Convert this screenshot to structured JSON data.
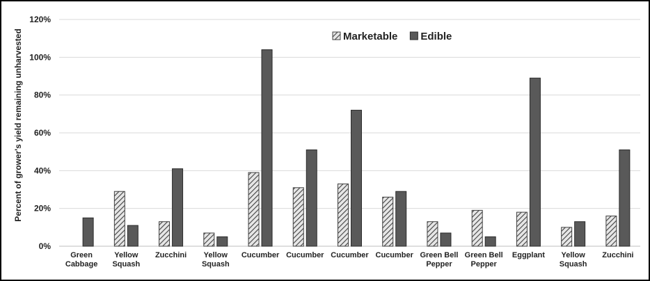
{
  "chart_data": {
    "type": "bar",
    "y_label": "Percent of grower's yield remaining unharvested",
    "categories": [
      "Green\nCabbage",
      "Yellow\nSquash",
      "Zucchini",
      "Yellow\nSquash",
      "Cucumber",
      "Cucumber",
      "Cucumber",
      "Cucumber",
      "Green Bell\nPepper",
      "Green Bell\nPepper",
      "Eggplant",
      "Yellow\nSquash",
      "Zucchini"
    ],
    "series": [
      {
        "name": "Marketable",
        "color": "#404040",
        "hatch": true,
        "values": [
          null,
          29,
          13,
          7,
          39,
          31,
          33,
          26,
          13,
          19,
          18,
          10,
          16
        ]
      },
      {
        "name": "Edible",
        "color": "#595959",
        "hatch": false,
        "values": [
          15,
          11,
          41,
          5,
          104,
          51,
          72,
          29,
          7,
          5,
          89,
          13,
          51
        ]
      }
    ],
    "ylim": [
      0,
      120
    ],
    "yticks": [
      {
        "value": 0,
        "label": "0%"
      },
      {
        "value": 20,
        "label": "20%"
      },
      {
        "value": 40,
        "label": "40%"
      },
      {
        "value": 60,
        "label": "60%"
      },
      {
        "value": 80,
        "label": "80%"
      },
      {
        "value": 100,
        "label": "100%"
      },
      {
        "value": 120,
        "label": "120%"
      }
    ],
    "grid": true,
    "legend": "top"
  }
}
